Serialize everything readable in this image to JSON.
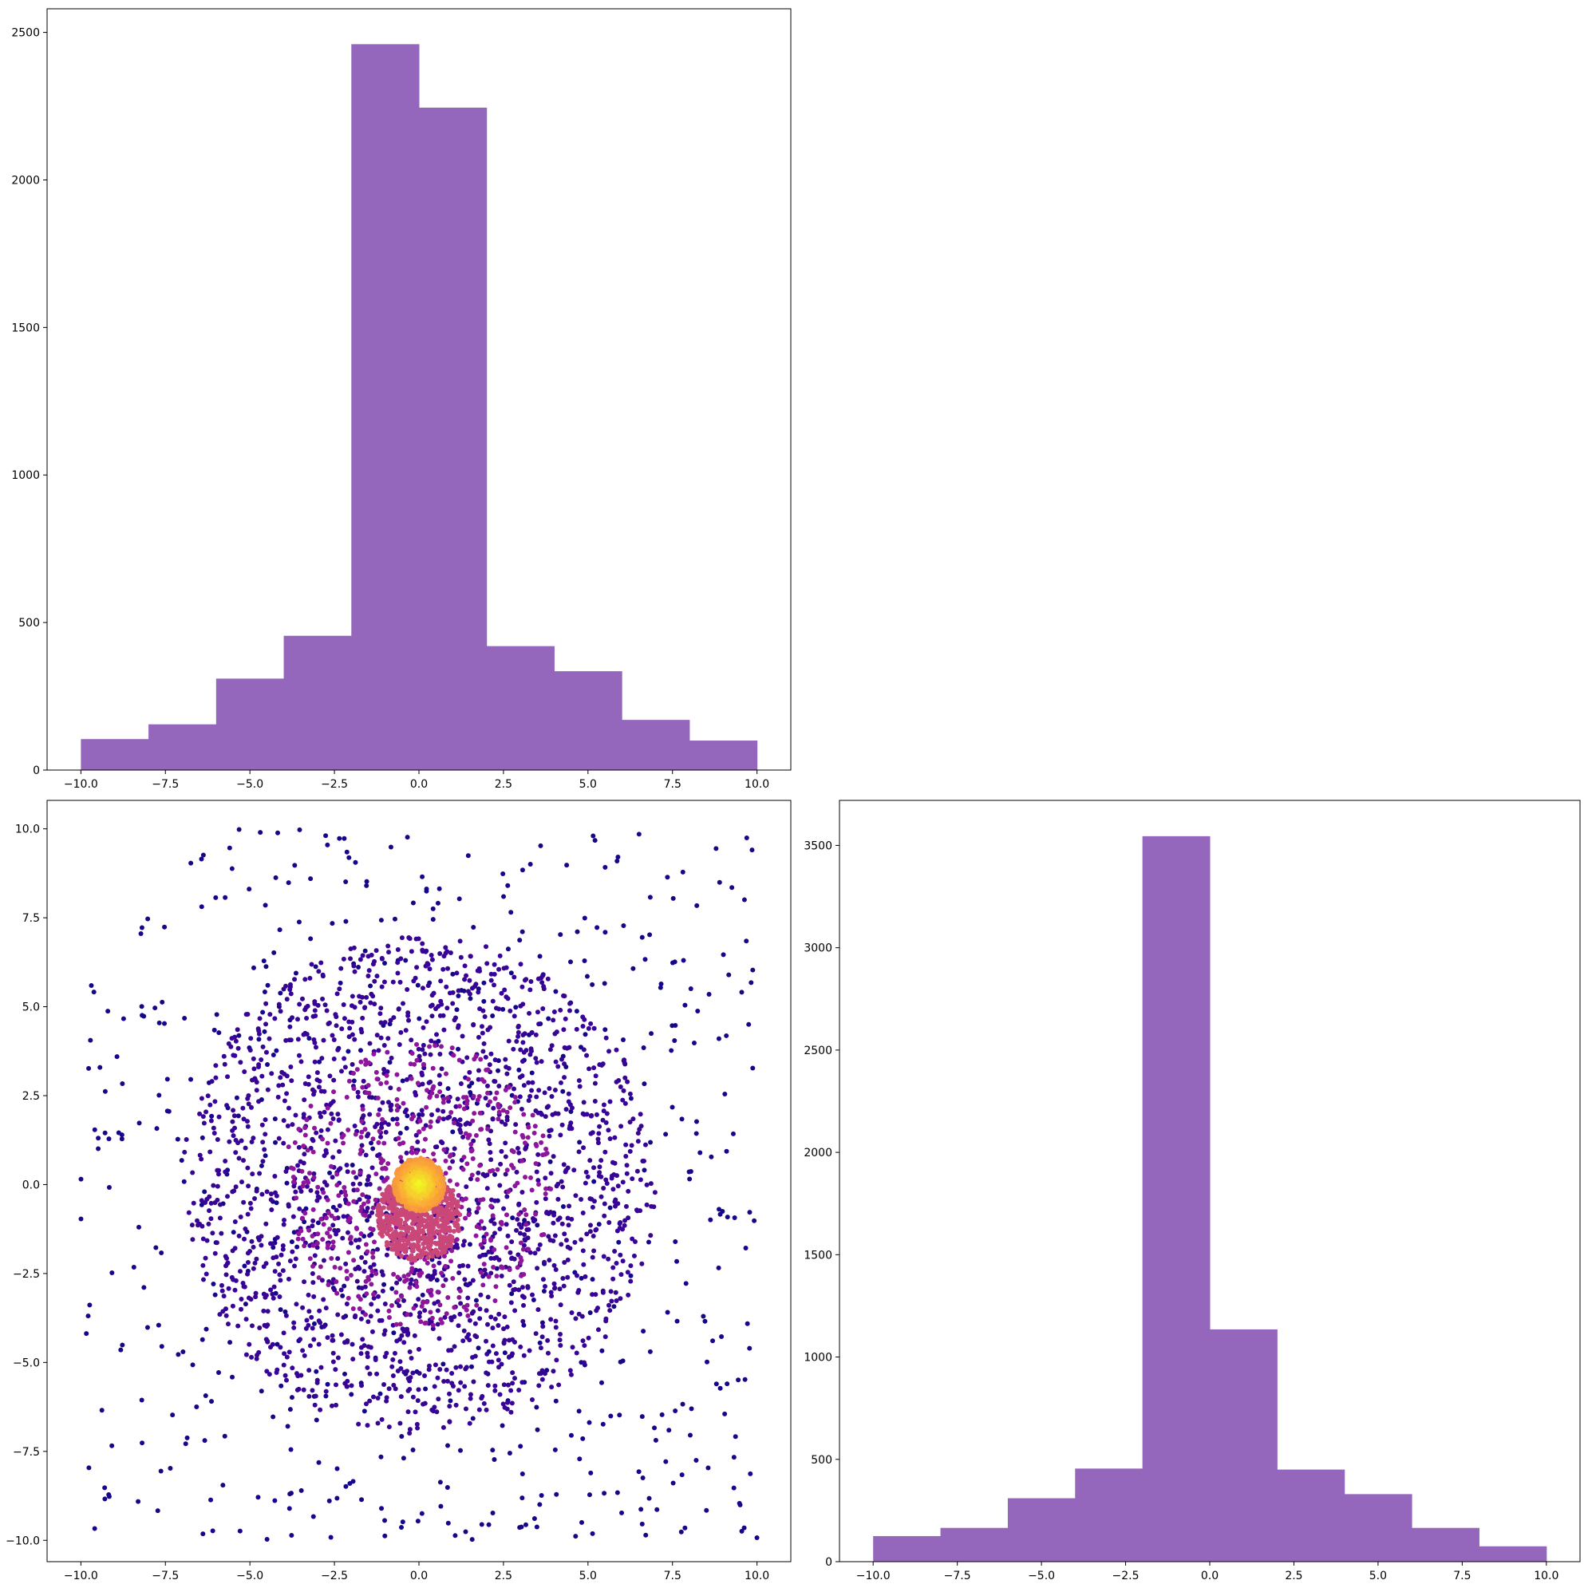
{
  "chart_data": [
    {
      "panel": "top-left",
      "type": "bar",
      "chart_kind": "histogram",
      "color": "#9467bd",
      "bin_edges": [
        -10,
        -8,
        -6,
        -4,
        -2,
        0,
        2,
        4,
        6,
        8,
        10
      ],
      "values": [
        105,
        155,
        310,
        455,
        2460,
        2245,
        420,
        335,
        170,
        100
      ],
      "xlim": [
        -11,
        11
      ],
      "ylim": [
        0,
        2580
      ],
      "xticks": [
        -10.0,
        -7.5,
        -5.0,
        -2.5,
        0.0,
        2.5,
        5.0,
        7.5,
        10.0
      ],
      "xtick_labels": [
        "−10.0",
        "−7.5",
        "−5.0",
        "−2.5",
        "0.0",
        "2.5",
        "5.0",
        "7.5",
        "10.0"
      ],
      "yticks": [
        0,
        500,
        1000,
        1500,
        2000,
        2500
      ],
      "ytick_labels": [
        "0",
        "500",
        "1000",
        "1500",
        "2000",
        "2500"
      ],
      "title": "",
      "xlabel": "",
      "ylabel": "",
      "grid": false
    },
    {
      "panel": "bottom-left",
      "type": "scatter",
      "colormap": "plasma",
      "color_scale": [
        "#0d0887",
        "#6a00a8",
        "#b12a90",
        "#e16462",
        "#fca636",
        "#f0f921"
      ],
      "xlim": [
        -11,
        11
      ],
      "ylim": [
        -10.6,
        10.8
      ],
      "xticks": [
        -10.0,
        -7.5,
        -5.0,
        -2.5,
        0.0,
        2.5,
        5.0,
        7.5,
        10.0
      ],
      "xtick_labels": [
        "−10.0",
        "−7.5",
        "−5.0",
        "−2.5",
        "0.0",
        "2.5",
        "5.0",
        "7.5",
        "10.0"
      ],
      "yticks": [
        -10.0,
        -7.5,
        -5.0,
        -2.5,
        0.0,
        2.5,
        5.0,
        7.5,
        10.0
      ],
      "ytick_labels": [
        "−10.0",
        "−7.5",
        "−5.0",
        "−2.5",
        "0.0",
        "2.5",
        "5.0",
        "7.5",
        "10.0"
      ],
      "clusters": [
        {
          "shape": "uniform-square",
          "center": [
            0,
            0
          ],
          "half_width": 10,
          "count": 640,
          "density": 0.02
        },
        {
          "shape": "disk",
          "center": [
            0,
            0
          ],
          "radius": 7,
          "count": 1800,
          "density": 0.09
        },
        {
          "shape": "disk",
          "center": [
            0,
            0
          ],
          "radius": 4,
          "count": 500,
          "density": 0.3
        },
        {
          "shape": "disk",
          "center": [
            0,
            -0.9
          ],
          "radius": 1.25,
          "count": 700,
          "density": 0.5
        },
        {
          "shape": "disk",
          "center": [
            0,
            0
          ],
          "radius": 0.75,
          "count": 800,
          "density": 0.75
        },
        {
          "shape": "disk",
          "center": [
            0,
            0
          ],
          "radius": 0.35,
          "count": 300,
          "density": 1.0
        }
      ],
      "title": "",
      "xlabel": "",
      "ylabel": "",
      "grid": false
    },
    {
      "panel": "bottom-right",
      "type": "bar",
      "chart_kind": "histogram",
      "color": "#9467bd",
      "bin_edges": [
        -10,
        -8,
        -6,
        -4,
        -2,
        0,
        2,
        4,
        6,
        8,
        10
      ],
      "values": [
        125,
        165,
        310,
        455,
        3545,
        1135,
        450,
        330,
        165,
        75
      ],
      "xlim": [
        -11,
        11
      ],
      "ylim": [
        0,
        3720
      ],
      "xticks": [
        -10.0,
        -7.5,
        -5.0,
        -2.5,
        0.0,
        2.5,
        5.0,
        7.5,
        10.0
      ],
      "xtick_labels": [
        "−10.0",
        "−7.5",
        "−5.0",
        "−2.5",
        "0.0",
        "2.5",
        "5.0",
        "7.5",
        "10.0"
      ],
      "yticks": [
        0,
        500,
        1000,
        1500,
        2000,
        2500,
        3000,
        3500
      ],
      "ytick_labels": [
        "0",
        "500",
        "1000",
        "1500",
        "2000",
        "2500",
        "3000",
        "3500"
      ],
      "title": "",
      "xlabel": "",
      "ylabel": "",
      "grid": false
    }
  ]
}
